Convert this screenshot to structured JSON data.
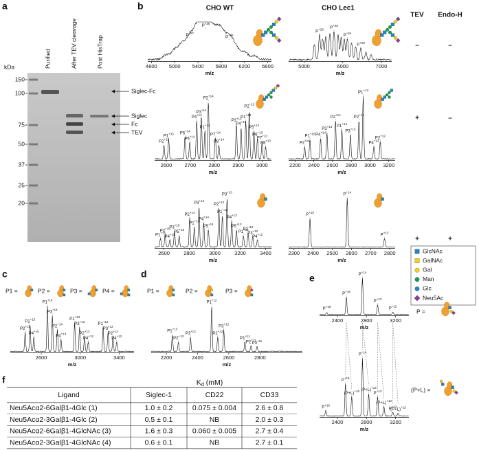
{
  "panels": {
    "a": {
      "letter": "a",
      "unit": "kDa",
      "lanes": [
        "Purified",
        "After TEV cleavage",
        "Post HisTrap"
      ],
      "markers": [
        150,
        100,
        75,
        50,
        37,
        25,
        20
      ],
      "bands": [
        "Siglec-Fc",
        "Siglec",
        "Fc",
        "TEV"
      ]
    },
    "b": {
      "letter": "b",
      "columns": [
        "CHO WT",
        "CHO Lec1",
        "TEV",
        "Endo-H"
      ],
      "axis_label": "m/z",
      "treatments": [
        [
          "–",
          "–"
        ],
        [
          "+",
          "–"
        ],
        [
          "+",
          "+"
        ]
      ],
      "spectra": [
        {
          "ticks": [
            4600,
            5000,
            5400,
            5800,
            6200,
            6600
          ],
          "peaks": [
            "P+27",
            "P+26",
            "P+25"
          ]
        },
        {
          "ticks": [
            5000,
            6000,
            7000
          ],
          "peaks": [
            "P+26",
            "P+25",
            "P+24",
            "P+23"
          ]
        },
        {
          "ticks": [
            2600,
            2700,
            2800,
            2900,
            3000
          ],
          "peaks": [
            "P2+15",
            "P1+15",
            "P5+14",
            "P6+14",
            "P4+14",
            "P3+14",
            "P1+14",
            "P2+14",
            "P7+14",
            "P8+14",
            "P3+13",
            "P4+13",
            "P1+13",
            "P2+13",
            "P5+13",
            "P6+13",
            "P7+13",
            "P8+13"
          ]
        },
        {
          "ticks": [
            2200,
            2400,
            2600,
            2800,
            3000,
            3200
          ],
          "peaks": [
            "P2+15",
            "P1+15",
            "P4+14",
            "P3+14",
            "P2+14",
            "P1+14",
            "P3+13",
            "P2+13",
            "P1+13",
            "P4+12",
            "P2+12"
          ]
        },
        {
          "ticks": [
            2600,
            2800,
            3000,
            3200,
            3400
          ],
          "peaks": [
            "P1+15",
            "P2+15",
            "P4+15",
            "P3+15",
            "P5+15",
            "P2+14",
            "P1+14",
            "P3+14",
            "P4+14",
            "P5+14",
            "P2+13",
            "P1+13",
            "P3+13",
            "P4+13",
            "P5+13",
            "P1+12",
            "P2+12",
            "P3+12",
            "P4+12"
          ]
        },
        {
          "ticks": [
            2300,
            2400,
            2500,
            2600,
            2700,
            2800
          ],
          "peaks": [
            "P+15",
            "P+14",
            "P+13"
          ]
        }
      ]
    },
    "legend": [
      "GlcNAc",
      "GalNAc",
      "Gal",
      "Man",
      "Glc",
      "Neu5Ac"
    ],
    "c": {
      "letter": "c",
      "species": [
        "P1 =",
        "P2 =",
        "P3 =",
        "P4 ="
      ],
      "axis_label": "m/z",
      "ticks": [
        2600,
        3000,
        3400
      ],
      "peaks": [
        "P2+15",
        "P1+15",
        "P4+15",
        "P1+14",
        "P3+14",
        "P2+14",
        "P4+14",
        "P1+13",
        "P3+13",
        "P2+13",
        "P4+13",
        "P1+12",
        "P3+12",
        "P2+12",
        "P4+12"
      ]
    },
    "d": {
      "letter": "d",
      "species": [
        "P1 =",
        "P2 =",
        "P3 ="
      ],
      "axis_label": "m/z",
      "ticks": [
        2200,
        2400,
        2600,
        2800
      ],
      "peaks": [
        "P1+13",
        "P2+13",
        "P3+13",
        "P1+12",
        "P2+12",
        "P3+12",
        "P1+11",
        "P2+11",
        "P3+11"
      ]
    },
    "e": {
      "letter": "e",
      "axis_label": "m/z",
      "spectra": [
        {
          "species": "P =",
          "ticks": [
            2400,
            2800,
            3200
          ],
          "peaks": [
            "P+16",
            "P+15",
            "P+14",
            "P+13",
            "P+12"
          ]
        },
        {
          "species": "(P+L) =",
          "ticks": [
            2400,
            2800,
            3200
          ],
          "peaks": [
            "P+16",
            "P+15",
            "(P+L)+15",
            "P+14",
            "(P+L)+14",
            "P+13",
            "(P+L)+13",
            "P+12",
            "(P+L)+12"
          ]
        }
      ]
    },
    "f": {
      "letter": "f",
      "kd_header": "Kd (mM)",
      "header": [
        "Ligand",
        "Siglec-1",
        "CD22",
        "CD33"
      ],
      "rows": [
        [
          "Neu5Acα2-6Galβ1-4Glc (1)",
          "1.0 ± 0.2",
          "0.075 ± 0.004",
          "2.6 ± 0.8"
        ],
        [
          "Neu5Acα2-3Galβ1-4Glc (2)",
          "0.5 ± 0.1",
          "NB",
          "2.0 ± 0.3"
        ],
        [
          "Neu5Acα2-6Galβ1-4GlcNAc (3)",
          "1.6 ± 0.3",
          "0.060 ± 0.005",
          "2.7 ± 0.4"
        ],
        [
          "Neu5Acα2-3Galβ1-4GlcNAc (4)",
          "0.6 ± 0.1",
          "NB",
          "2.7 ± 0.1"
        ]
      ]
    }
  }
}
